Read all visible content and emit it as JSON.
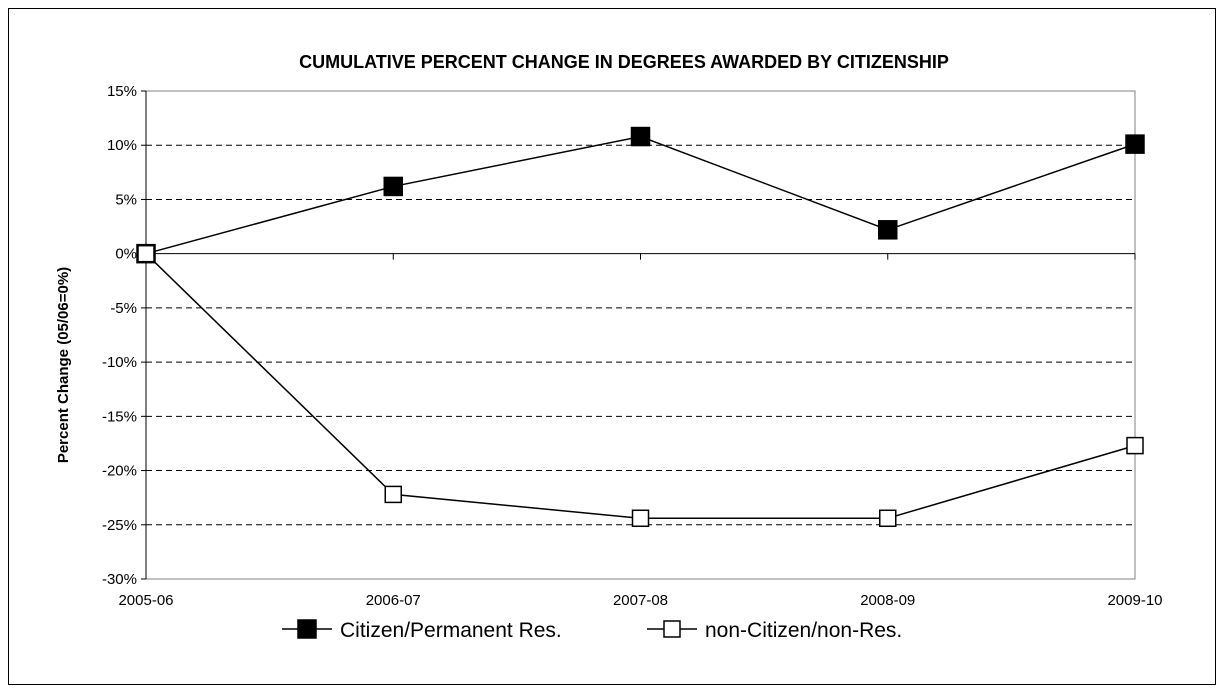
{
  "chart_data": {
    "type": "line",
    "title": "CUMULATIVE PERCENT CHANGE IN DEGREES AWARDED BY CITIZENSHIP",
    "xlabel": "",
    "ylabel": "Percent Change (05/06=0%)",
    "categories": [
      "2005-06",
      "2006-07",
      "2007-08",
      "2008-09",
      "2009-10"
    ],
    "y_ticks": [
      "15%",
      "10%",
      "5%",
      "0%",
      "-5%",
      "-10%",
      "-15%",
      "-20%",
      "-25%",
      "-30%"
    ],
    "ylim": [
      -30,
      15
    ],
    "grid": "horizontal dashed",
    "legend_position": "bottom",
    "series": [
      {
        "name": "Citizen/Permanent Res.",
        "values": [
          0,
          6.2,
          10.8,
          2.2,
          10.1
        ],
        "marker": "filled-square",
        "color": "#000000"
      },
      {
        "name": "non-Citizen/non-Res.",
        "values": [
          0,
          -22.2,
          -24.4,
          -24.4,
          -17.7
        ],
        "marker": "open-square",
        "color": "#000000"
      }
    ]
  }
}
